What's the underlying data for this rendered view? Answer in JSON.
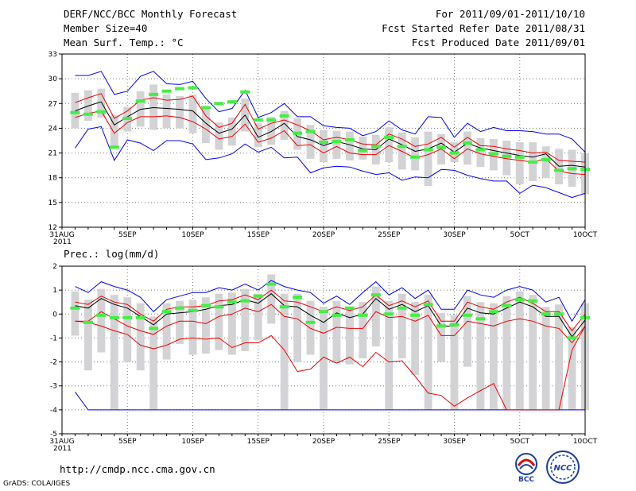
{
  "header": {
    "title": "DERF/NCC/BCC Monthly Forecast",
    "member_size": "Member Size=40",
    "variable": "Mean Surf. Temp.: °C",
    "period": "For 2011/09/01-2011/10/10",
    "started": "Fcst Started Refer Date 2011/08/31",
    "produced": "Fcst Produced Date 2011/09/01"
  },
  "footer": {
    "url": "http://cmdp.ncc.cma.gov.cn",
    "grads": "GrADS: COLA/IGES",
    "logo_bcc": "BCC",
    "logo_ncc": "NCC"
  },
  "colors": {
    "max_min": "#0000ee",
    "spread": "#ee0000",
    "mean": "#000000",
    "box": "#d3d3d6",
    "marker": "#44ee44",
    "grid": "#777777"
  },
  "chart_data": [
    {
      "type": "box",
      "title": "Mean Surf. Temp.: °C",
      "ylim": [
        12,
        33
      ],
      "yticks": [
        12,
        15,
        18,
        21,
        24,
        27,
        30,
        33
      ],
      "xlim": [
        0,
        40
      ],
      "xticks": [
        {
          "d": 0,
          "label": "31AUG",
          "sub": "2011"
        },
        {
          "d": 5,
          "label": "5SEP"
        },
        {
          "d": 10,
          "label": "10SEP"
        },
        {
          "d": 15,
          "label": "15SEP"
        },
        {
          "d": 20,
          "label": "20SEP"
        },
        {
          "d": 25,
          "label": "25SEP"
        },
        {
          "d": 30,
          "label": "30SEP"
        },
        {
          "d": 35,
          "label": "5OCT"
        },
        {
          "d": 40,
          "label": "10OCT"
        }
      ],
      "x": [
        1,
        2,
        3,
        4,
        5,
        6,
        7,
        8,
        9,
        10,
        11,
        12,
        13,
        14,
        15,
        16,
        17,
        18,
        19,
        20,
        21,
        22,
        23,
        24,
        25,
        26,
        27,
        28,
        29,
        30,
        31,
        32,
        33,
        34,
        35,
        36,
        37,
        38,
        39,
        40
      ],
      "series": [
        {
          "name": "max",
          "values": [
            30.4,
            30.4,
            30.9,
            28.1,
            28.5,
            30.3,
            30.9,
            29.4,
            29.3,
            29.7,
            27.6,
            26.0,
            26.4,
            28.6,
            25.3,
            25.9,
            27.0,
            25.4,
            25.4,
            24.3,
            24.1,
            24.0,
            23.1,
            23.6,
            24.9,
            23.8,
            23.3,
            25.4,
            25.3,
            22.9,
            24.6,
            23.6,
            24.1,
            23.7,
            23.7,
            23.6,
            23.3,
            23.3,
            22.7,
            21.1
          ]
        },
        {
          "name": "upper",
          "values": [
            27.1,
            27.7,
            28.2,
            25.2,
            26.1,
            27.4,
            27.7,
            27.4,
            27.5,
            27.9,
            25.5,
            24.1,
            24.6,
            26.9,
            23.9,
            24.6,
            25.0,
            24.4,
            23.7,
            22.6,
            22.9,
            22.6,
            22.1,
            22.0,
            23.3,
            22.7,
            21.8,
            22.1,
            22.9,
            21.7,
            22.9,
            21.9,
            21.8,
            21.5,
            21.3,
            21.0,
            21.1,
            20.1,
            20.0,
            19.9
          ]
        },
        {
          "name": "mean",
          "values": [
            26.1,
            26.7,
            27.2,
            24.4,
            25.4,
            26.3,
            26.5,
            26.4,
            26.3,
            26.1,
            24.6,
            23.4,
            23.9,
            25.6,
            22.9,
            23.6,
            24.6,
            23.0,
            22.6,
            21.9,
            22.4,
            22.0,
            21.5,
            21.4,
            22.7,
            22.0,
            21.2,
            21.5,
            22.2,
            21.1,
            22.2,
            21.6,
            21.3,
            21.0,
            20.7,
            20.5,
            20.9,
            19.4,
            19.5,
            19.3
          ]
        },
        {
          "name": "lower",
          "values": [
            25.3,
            25.8,
            26.1,
            23.4,
            24.7,
            25.4,
            25.4,
            25.5,
            25.3,
            24.8,
            23.9,
            22.7,
            23.0,
            24.5,
            22.3,
            22.8,
            23.7,
            21.9,
            22.0,
            21.0,
            21.8,
            21.0,
            20.8,
            20.8,
            21.9,
            21.2,
            20.4,
            20.8,
            21.5,
            20.3,
            21.5,
            20.9,
            20.6,
            20.3,
            20.1,
            19.9,
            20.3,
            18.8,
            18.5,
            18.4
          ]
        },
        {
          "name": "min",
          "values": [
            21.6,
            23.9,
            24.2,
            20.1,
            22.6,
            22.2,
            21.3,
            22.5,
            22.5,
            22.1,
            20.2,
            20.4,
            20.9,
            22.1,
            21.1,
            21.7,
            20.4,
            20.5,
            18.6,
            19.2,
            19.4,
            19.3,
            18.8,
            18.4,
            18.6,
            17.7,
            18.1,
            18.0,
            19.0,
            18.9,
            18.3,
            17.9,
            17.6,
            17.6,
            16.1,
            17.1,
            16.8,
            16.2,
            15.6,
            16.1
          ]
        },
        {
          "name": "box_top",
          "values": [
            28.3,
            28.6,
            28.8,
            25.6,
            26.6,
            28.5,
            29.3,
            28.1,
            27.9,
            28.1,
            26.6,
            24.7,
            25.3,
            27.6,
            24.6,
            25.4,
            26.1,
            25.2,
            24.4,
            23.8,
            23.7,
            23.6,
            23.0,
            23.2,
            24.1,
            23.5,
            22.9,
            23.6,
            23.3,
            22.3,
            23.6,
            22.8,
            22.7,
            22.5,
            22.3,
            22.3,
            21.8,
            21.5,
            21.4,
            21.0
          ]
        },
        {
          "name": "box_bottom",
          "values": [
            24.0,
            24.9,
            25.3,
            21.8,
            23.6,
            24.2,
            23.8,
            24.0,
            24.0,
            23.4,
            22.2,
            21.4,
            21.9,
            23.6,
            21.7,
            22.0,
            22.6,
            21.4,
            20.3,
            19.9,
            20.3,
            20.1,
            20.2,
            19.6,
            19.9,
            19.0,
            18.9,
            17.0,
            19.6,
            19.9,
            19.6,
            19.3,
            18.9,
            18.3,
            17.2,
            17.6,
            18.0,
            17.2,
            16.9,
            16.0
          ]
        },
        {
          "name": "marker",
          "values": [
            25.9,
            25.7,
            26.0,
            21.7,
            25.2,
            27.3,
            28.1,
            28.5,
            28.8,
            28.9,
            26.5,
            27.0,
            27.2,
            28.4,
            25.0,
            25.0,
            25.5,
            23.4,
            23.6,
            22.3,
            22.4,
            22.6,
            21.3,
            21.8,
            22.9,
            21.8,
            20.5,
            21.4,
            21.7,
            21.0,
            22.2,
            21.4,
            20.9,
            20.6,
            20.5,
            19.9,
            20.2,
            18.9,
            19.1,
            19.0
          ]
        }
      ]
    },
    {
      "type": "box",
      "title": "Prec.: log(mm/d)",
      "ylim": [
        -5,
        2
      ],
      "yticks": [
        -5,
        -4,
        -3,
        -2,
        -1,
        0,
        1,
        2
      ],
      "xlim": [
        0,
        40
      ],
      "xticks": [
        {
          "d": 0,
          "label": "31AUG",
          "sub": "2011"
        },
        {
          "d": 5,
          "label": "5SEP"
        },
        {
          "d": 10,
          "label": "10SEP"
        },
        {
          "d": 15,
          "label": "15SEP"
        },
        {
          "d": 20,
          "label": "20SEP"
        },
        {
          "d": 25,
          "label": "25SEP"
        },
        {
          "d": 30,
          "label": "30SEP"
        },
        {
          "d": 35,
          "label": "5OCT"
        },
        {
          "d": 40,
          "label": "10OCT"
        }
      ],
      "x": [
        1,
        2,
        3,
        4,
        5,
        6,
        7,
        8,
        9,
        10,
        11,
        12,
        13,
        14,
        15,
        16,
        17,
        18,
        19,
        20,
        21,
        22,
        23,
        24,
        25,
        26,
        27,
        28,
        29,
        30,
        31,
        32,
        33,
        34,
        35,
        36,
        37,
        38,
        39,
        40
      ],
      "series": [
        {
          "name": "max",
          "values": [
            1.15,
            0.9,
            1.35,
            1.15,
            1.0,
            0.7,
            0.1,
            0.6,
            0.75,
            0.9,
            0.9,
            1.1,
            1.0,
            1.25,
            1.0,
            1.4,
            1.15,
            1.0,
            0.9,
            0.45,
            0.75,
            0.4,
            0.9,
            1.35,
            0.8,
            1.1,
            0.65,
            1.0,
            0.2,
            0.2,
            1.0,
            0.8,
            0.7,
            1.0,
            1.15,
            1.0,
            0.5,
            0.7,
            -0.3,
            0.6
          ]
        },
        {
          "name": "upper",
          "values": [
            0.5,
            0.4,
            0.75,
            0.5,
            0.4,
            0.0,
            -0.3,
            0.2,
            0.3,
            0.3,
            0.35,
            0.55,
            0.6,
            0.8,
            0.6,
            1.0,
            0.55,
            0.5,
            0.3,
            0.1,
            0.3,
            0.15,
            0.3,
            0.8,
            0.35,
            0.55,
            0.3,
            0.55,
            -0.3,
            -0.3,
            0.5,
            0.3,
            0.2,
            0.5,
            0.7,
            0.45,
            0.1,
            0.1,
            -0.7,
            0.0
          ]
        },
        {
          "name": "mean",
          "values": [
            0.35,
            0.25,
            0.65,
            0.4,
            0.25,
            -0.1,
            -0.45,
            0.0,
            0.05,
            0.1,
            0.2,
            0.35,
            0.4,
            0.6,
            0.45,
            0.85,
            0.35,
            0.3,
            -0.05,
            -0.35,
            0.05,
            -0.15,
            0.0,
            0.65,
            0.2,
            0.4,
            0.1,
            0.35,
            -0.5,
            -0.5,
            0.25,
            0.05,
            0.0,
            0.25,
            0.5,
            0.3,
            -0.1,
            -0.1,
            -0.95,
            -0.25
          ]
        },
        {
          "name": "lower",
          "values": [
            -0.3,
            -0.3,
            0.1,
            -0.2,
            -0.5,
            -0.7,
            -0.85,
            -0.5,
            -0.3,
            -0.3,
            -0.4,
            -0.1,
            0.0,
            0.25,
            0.1,
            0.4,
            -0.1,
            -0.2,
            -0.6,
            -0.8,
            -0.55,
            -0.6,
            -0.6,
            0.1,
            -0.15,
            -0.1,
            -0.3,
            -0.05,
            -0.9,
            -0.9,
            -0.3,
            -0.4,
            -0.5,
            -0.3,
            -0.2,
            -0.3,
            -0.5,
            -0.6,
            -1.2,
            -0.5
          ]
        },
        {
          "name": "spread_min",
          "values": [
            -0.3,
            -0.35,
            -0.5,
            -0.7,
            -0.85,
            -1.3,
            -1.45,
            -1.3,
            -1.05,
            -1.0,
            -1.05,
            -1.0,
            -1.4,
            -1.2,
            -1.2,
            -0.9,
            -1.5,
            -2.4,
            -2.3,
            -1.8,
            -2.05,
            -1.8,
            -2.2,
            -1.6,
            -2.0,
            -1.95,
            -2.6,
            -3.3,
            -3.4,
            -3.85,
            -3.5,
            -3.2,
            -2.9,
            -4.0,
            -4.0,
            -4.0,
            -4.0,
            -4.0,
            -1.5,
            -0.5
          ]
        },
        {
          "name": "min",
          "values": [
            -3.25,
            -4.0,
            -4.0,
            -4.0,
            -4.0,
            -4.0,
            -4.0,
            -4.0,
            -4.0,
            -4.0,
            -4.0,
            -4.0,
            -4.0,
            -4.0,
            -4.0,
            -4.0,
            -4.0,
            -4.0,
            -4.0,
            -4.0,
            -4.0,
            -4.0,
            -4.0,
            -4.0,
            -4.0,
            -4.0,
            -4.0,
            -4.0,
            -4.0,
            -4.0,
            -4.0,
            -4.0,
            -4.0,
            -4.0,
            -4.0,
            -4.0,
            -4.0,
            -4.0,
            -4.0,
            -4.0
          ]
        },
        {
          "name": "box_top",
          "values": [
            0.95,
            0.6,
            1.05,
            0.8,
            0.7,
            0.45,
            -0.1,
            0.45,
            0.55,
            0.6,
            0.7,
            0.85,
            0.9,
            1.05,
            0.85,
            1.65,
            0.85,
            0.85,
            0.55,
            0.3,
            0.55,
            0.3,
            0.5,
            1.15,
            0.55,
            0.85,
            0.5,
            0.8,
            0.05,
            -0.05,
            0.75,
            0.5,
            0.45,
            0.75,
            0.95,
            0.8,
            0.3,
            0.4,
            -0.55,
            0.45
          ]
        },
        {
          "name": "box_bottom",
          "values": [
            -0.9,
            -2.35,
            -1.6,
            -4.0,
            -2.0,
            -2.35,
            -4.0,
            -1.9,
            -1.25,
            -1.7,
            -1.65,
            -1.5,
            -1.7,
            -1.55,
            -1.1,
            -0.4,
            -4.0,
            -2.0,
            -1.7,
            -4.0,
            -2.05,
            -2.1,
            -1.85,
            -1.35,
            -4.0,
            -1.85,
            -2.55,
            -4.0,
            -2.0,
            -4.0,
            -2.2,
            -4.0,
            -4.0,
            -4.0,
            -4.0,
            -4.0,
            -4.0,
            -4.0,
            -4.0,
            -4.0
          ]
        },
        {
          "name": "marker",
          "values": [
            0.25,
            -0.35,
            -0.05,
            -0.15,
            -0.15,
            -0.15,
            -0.6,
            0.1,
            0.25,
            0.15,
            0.35,
            0.3,
            0.5,
            0.55,
            0.75,
            1.25,
            0.3,
            0.7,
            -0.35,
            0.1,
            -0.05,
            0.25,
            -0.05,
            0.8,
            0.0,
            0.25,
            -0.05,
            0.4,
            -0.5,
            -0.45,
            -0.05,
            -0.2,
            0.1,
            0.35,
            0.6,
            0.55,
            0.0,
            0.0,
            -1.0,
            -0.15
          ]
        }
      ]
    }
  ]
}
